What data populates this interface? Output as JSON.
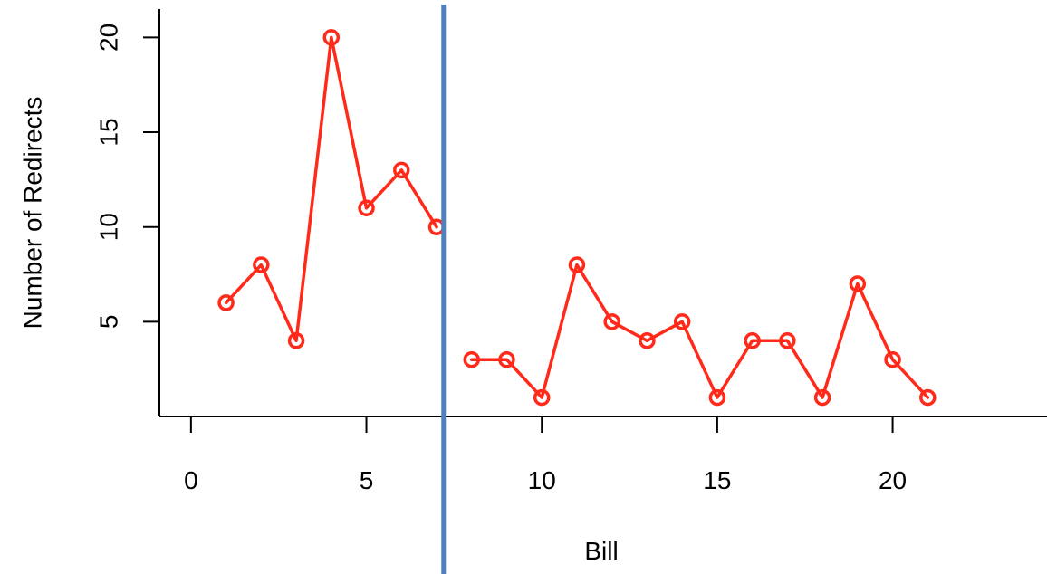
{
  "chart_data": {
    "type": "line",
    "title": "",
    "xlabel": "Bill",
    "ylabel": "Number of Redirects",
    "xlim": [
      -0.9,
      24.4
    ],
    "ylim": [
      0,
      21.5
    ],
    "x_ticks": [
      0,
      5,
      10,
      15,
      20
    ],
    "y_ticks": [
      5,
      10,
      15,
      20
    ],
    "grid": false,
    "series": [
      {
        "x": [
          1,
          2,
          3,
          4,
          5,
          6,
          7
        ],
        "values": [
          6,
          8,
          4,
          20,
          11,
          13,
          10
        ],
        "color": "#ff2a1a"
      },
      {
        "x": [
          8,
          9,
          10,
          11,
          12,
          13,
          14,
          15,
          16,
          17,
          18,
          19,
          20,
          21
        ],
        "values": [
          3,
          3,
          1,
          8,
          5,
          4,
          5,
          1,
          4,
          4,
          1,
          7,
          3,
          1
        ],
        "color": "#ff2a1a"
      }
    ],
    "reference_line": {
      "x": 7.2,
      "color": "#4f7fbf"
    }
  }
}
